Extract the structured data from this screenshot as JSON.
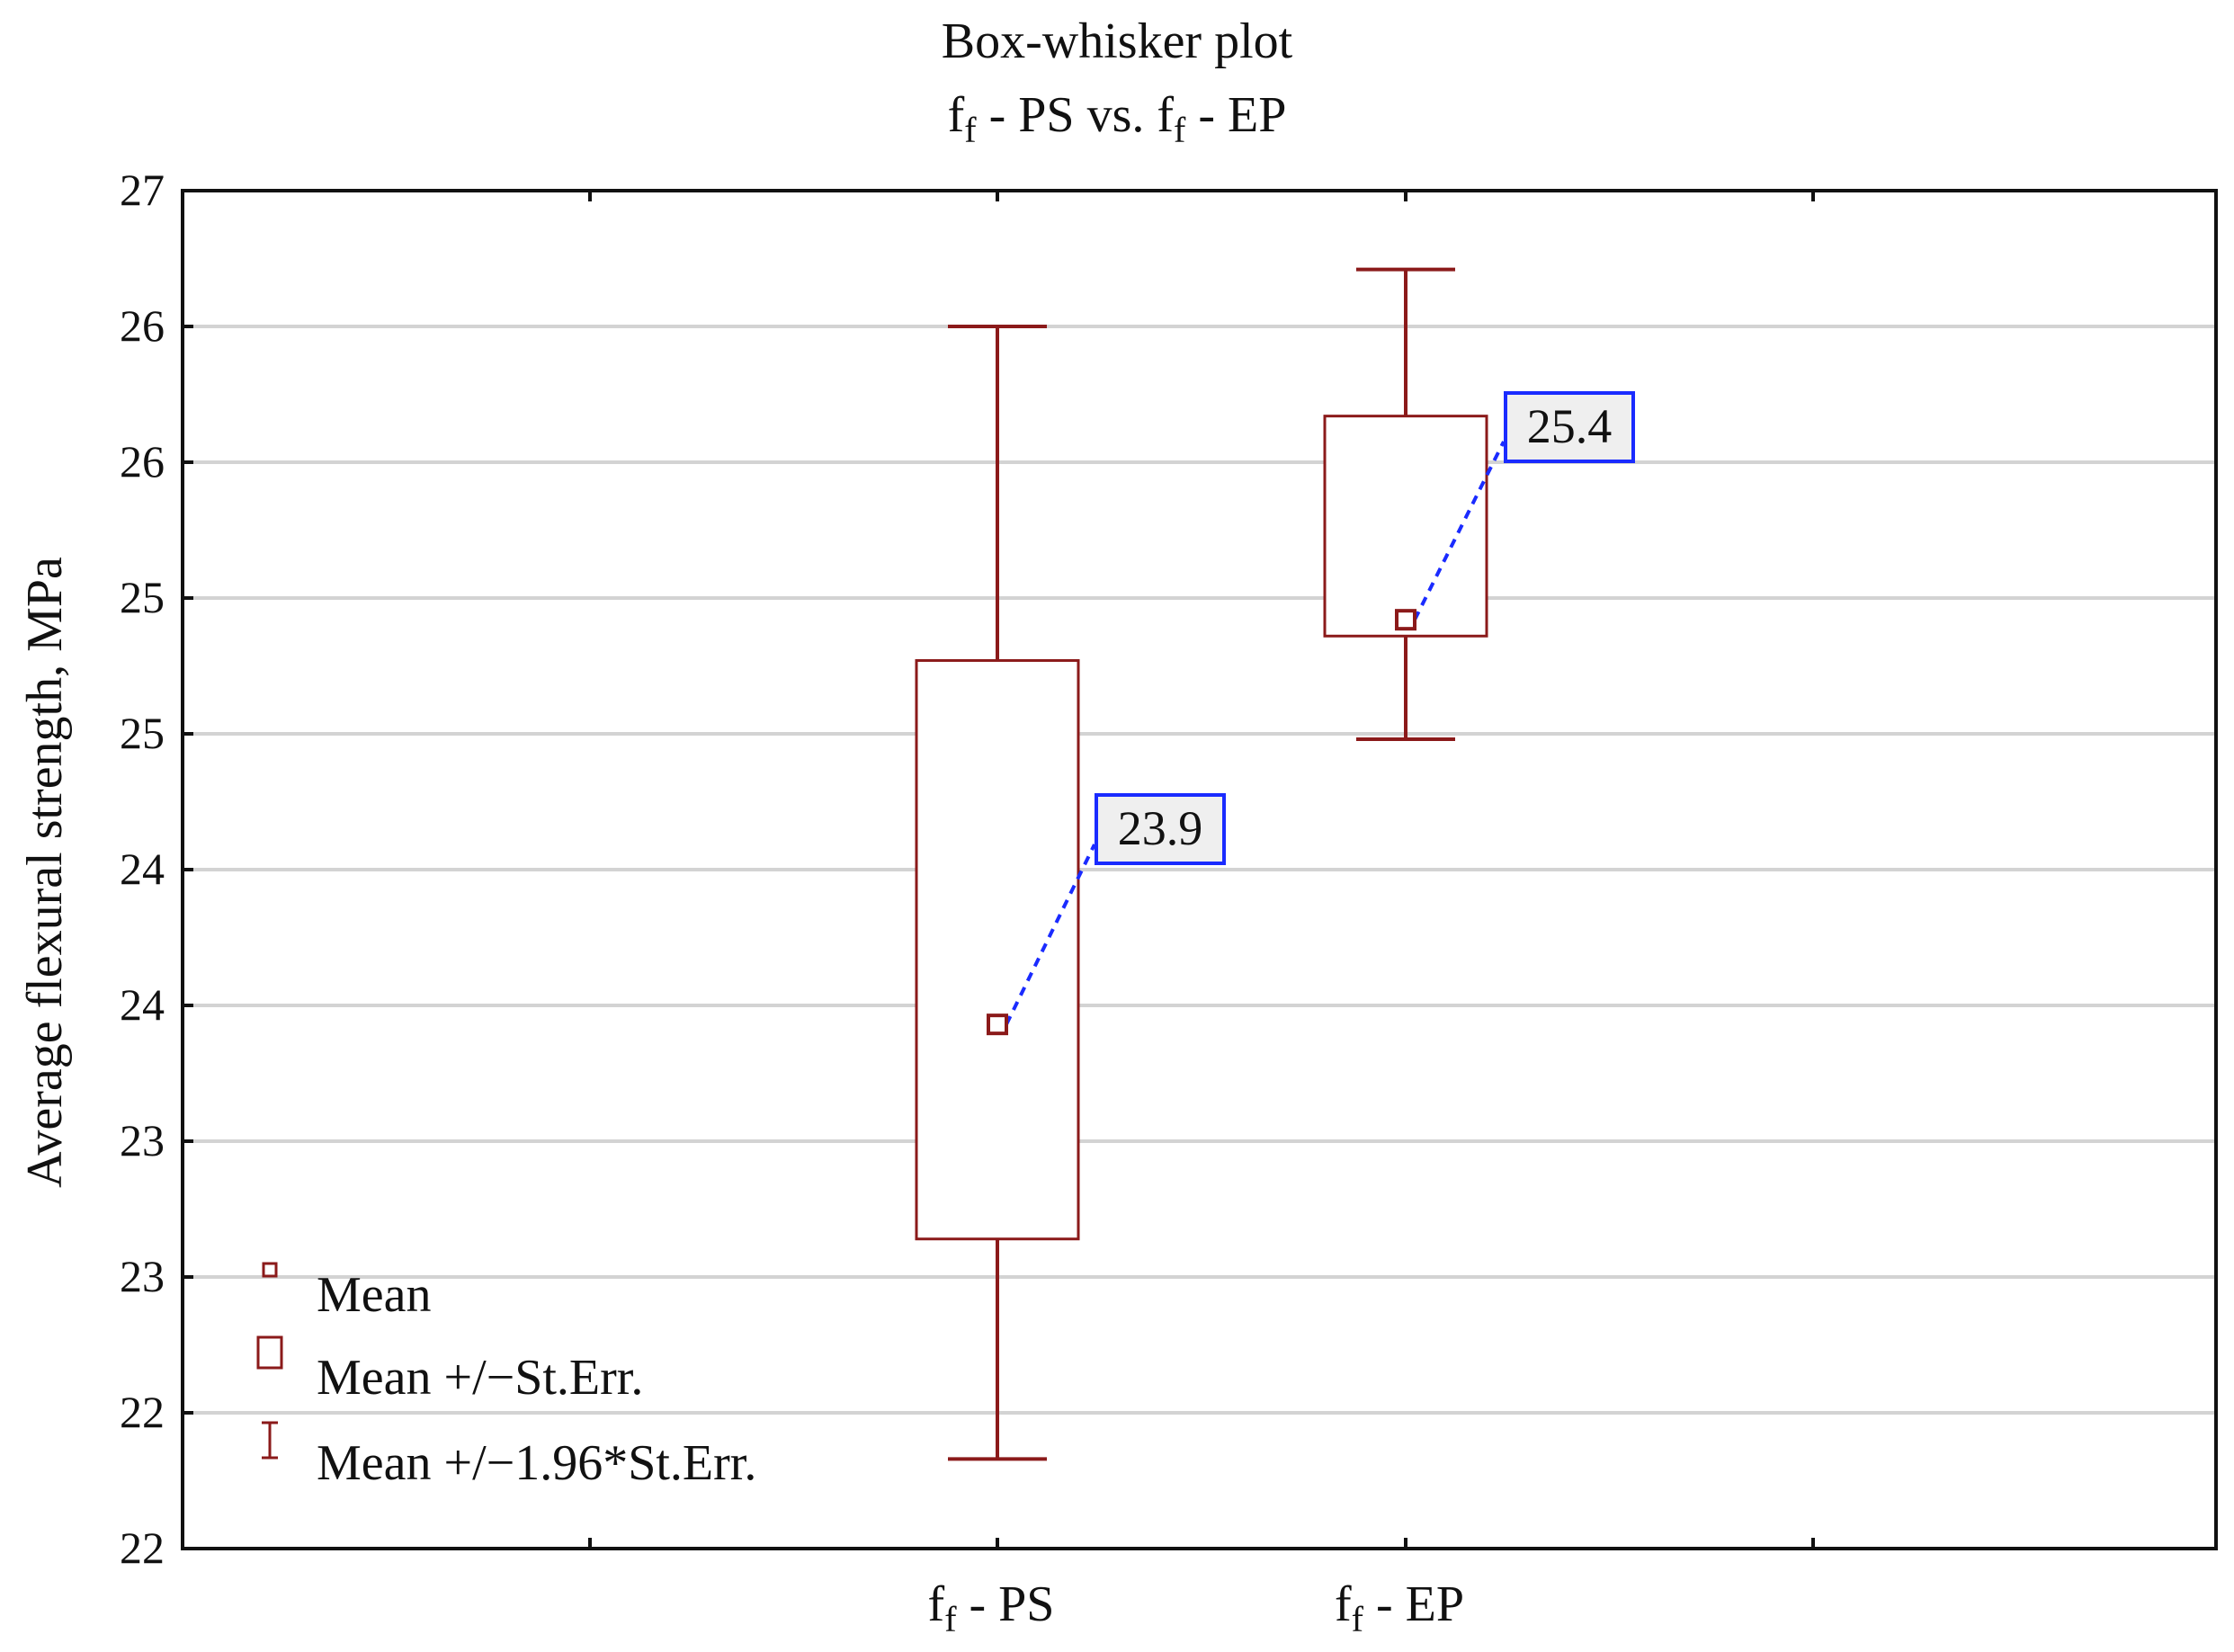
{
  "chart_data": {
    "type": "box",
    "title": "Box-whisker plot",
    "subtitle": {
      "left_main": "f",
      "left_sub": "f",
      "left_rest": " - PS vs. ",
      "right_main": "f",
      "right_sub": "f",
      "right_rest": " - EP"
    },
    "ylabel": "Average flexural strength, MPa",
    "ylim": [
      22.0,
      27.0
    ],
    "ytick_values": [
      22.0,
      22.5,
      23.0,
      23.5,
      24.0,
      24.5,
      25.0,
      25.5,
      26.0,
      26.5,
      27.0
    ],
    "ytick_labels": [
      "22",
      "22",
      "23",
      "23",
      "24",
      "24",
      "25",
      "25",
      "26",
      "26",
      "27"
    ],
    "categories": [
      {
        "main": "f",
        "sub": "f",
        "rest": " - PS"
      },
      {
        "main": "f",
        "sub": "f",
        "rest": " - EP"
      }
    ],
    "series": [
      {
        "name": "f_f - PS",
        "mean": 23.93,
        "box_low": 23.14,
        "box_high": 25.27,
        "whisker_low": 22.33,
        "whisker_high": 26.5,
        "label": "23.9"
      },
      {
        "name": "f_f - EP",
        "mean": 25.42,
        "box_low": 25.36,
        "box_high": 26.17,
        "whisker_low": 24.98,
        "whisker_high": 26.71,
        "label": "25.4"
      }
    ],
    "legend": {
      "position": "bottom-left",
      "items": [
        "Mean",
        "Mean +/−St.Err.",
        "Mean +/−1.96*St.Err."
      ]
    },
    "colors": {
      "box": "#8b1a1a",
      "grid": "#d3d3d3",
      "axis": "#111111",
      "connector": "#1a2bff"
    }
  }
}
